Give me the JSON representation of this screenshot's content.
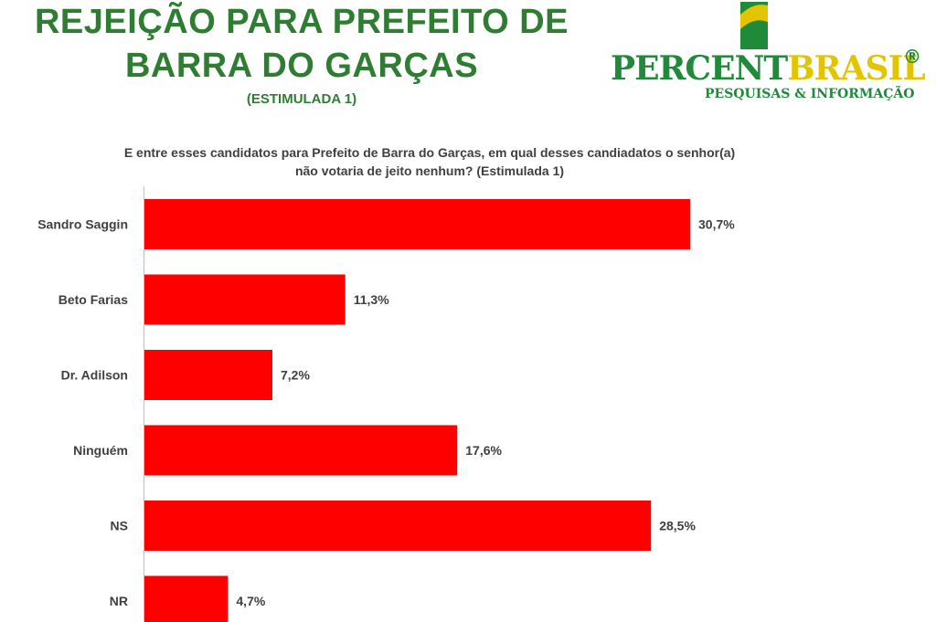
{
  "header": {
    "title_line1": "REJEIÇÃO PARA PREFEITO DE",
    "title_line2": "BARRA DO GARÇAS",
    "subtitle": "(ESTIMULADA 1)"
  },
  "logo": {
    "name_green": "PERCENT",
    "name_yellow": "BRASIL",
    "registered": "®",
    "tagline": "PESQUISAS & INFORMAÇÃO"
  },
  "question": {
    "line1": "E entre esses candidatos para Prefeito de Barra do Garças, em qual desses candiadatos o senhor(a)",
    "line2": "não votaria de jeito nenhum? (Estimulada 1)"
  },
  "colors": {
    "bar": "#ff0000",
    "title": "#2e7d32",
    "logo_green": "#1f8a3a",
    "logo_yellow": "#e2c400"
  },
  "chart_data": {
    "type": "bar",
    "orientation": "horizontal",
    "categories": [
      "Sandro Saggin",
      "Beto Farias",
      "Dr. Adilson",
      "Ninguém",
      "NS",
      "NR"
    ],
    "values": [
      30.7,
      11.3,
      7.2,
      17.6,
      28.5,
      4.7
    ],
    "value_labels": [
      "30,7%",
      "11,3%",
      "7,2%",
      "17,6%",
      "28,5%",
      "4,7%"
    ],
    "xlim": [
      0,
      30.7
    ],
    "grid": false,
    "legend": "none"
  }
}
